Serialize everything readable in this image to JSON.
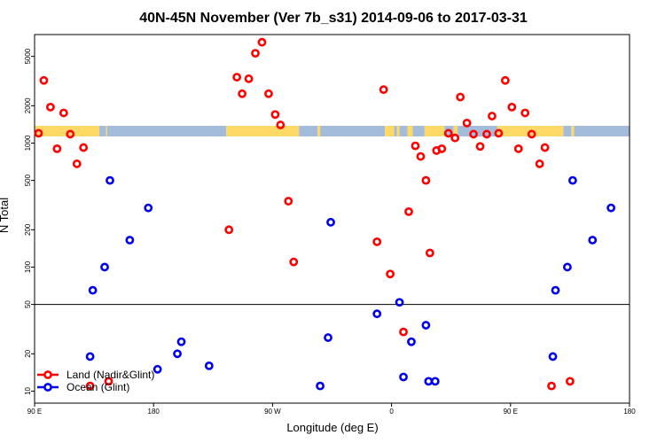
{
  "chart_data": {
    "type": "scatter",
    "title": "40N-45N November (Ver 7b_s31)   2014-09-06 to 2017-03-31",
    "xlabel": "Longitude (deg E)",
    "ylabel": "N Total",
    "x_ticks": [
      {
        "value": 90,
        "label": "90 E"
      },
      {
        "value": 180,
        "label": "180"
      },
      {
        "value": 270,
        "label": "90 W"
      },
      {
        "value": 360,
        "label": "0"
      },
      {
        "value": 450,
        "label": "90 E"
      },
      {
        "value": 540,
        "label": "180"
      }
    ],
    "xlim": [
      90,
      540
    ],
    "y_scale": "log",
    "y_ticks": [
      10,
      20,
      50,
      100,
      200,
      500,
      1000,
      2000,
      5000
    ],
    "ylim": [
      8,
      7500
    ],
    "reference_line_y": 50,
    "land_colors": {
      "land": "#ffd966",
      "ocean": "#a4bcdc"
    },
    "land_ocean_band": [
      {
        "from": 90,
        "to": 139,
        "type": "land"
      },
      {
        "from": 139,
        "to": 144,
        "type": "ocean"
      },
      {
        "from": 144,
        "to": 145,
        "type": "land"
      },
      {
        "from": 145,
        "to": 235,
        "type": "ocean"
      },
      {
        "from": 235,
        "to": 290,
        "type": "land"
      },
      {
        "from": 290,
        "to": 304,
        "type": "ocean"
      },
      {
        "from": 304,
        "to": 306,
        "type": "land"
      },
      {
        "from": 306,
        "to": 355,
        "type": "ocean"
      },
      {
        "from": 355,
        "to": 362,
        "type": "land"
      },
      {
        "from": 362,
        "to": 364,
        "type": "ocean"
      },
      {
        "from": 364,
        "to": 366,
        "type": "land"
      },
      {
        "from": 366,
        "to": 372,
        "type": "ocean"
      },
      {
        "from": 372,
        "to": 376,
        "type": "land"
      },
      {
        "from": 376,
        "to": 385,
        "type": "ocean"
      },
      {
        "from": 385,
        "to": 400,
        "type": "land"
      },
      {
        "from": 400,
        "to": 407,
        "type": "ocean"
      },
      {
        "from": 407,
        "to": 410,
        "type": "land"
      },
      {
        "from": 410,
        "to": 440,
        "type": "ocean"
      },
      {
        "from": 440,
        "to": 490,
        "type": "land"
      },
      {
        "from": 490,
        "to": 496,
        "type": "ocean"
      },
      {
        "from": 496,
        "to": 498,
        "type": "land"
      },
      {
        "from": 498,
        "to": 540,
        "type": "ocean"
      }
    ],
    "series": [
      {
        "name": "Land (Nadir&Glint)",
        "color": "#ff0000",
        "points": [
          {
            "x": 93,
            "y": 1200
          },
          {
            "x": 97,
            "y": 3200
          },
          {
            "x": 102,
            "y": 1950
          },
          {
            "x": 107,
            "y": 900
          },
          {
            "x": 112,
            "y": 1750
          },
          {
            "x": 117,
            "y": 1180
          },
          {
            "x": 122,
            "y": 680
          },
          {
            "x": 127,
            "y": 920
          },
          {
            "x": 132,
            "y": 11
          },
          {
            "x": 146,
            "y": 12
          },
          {
            "x": 237,
            "y": 200
          },
          {
            "x": 243,
            "y": 3400
          },
          {
            "x": 247,
            "y": 2500
          },
          {
            "x": 252,
            "y": 3300
          },
          {
            "x": 257,
            "y": 5300
          },
          {
            "x": 262,
            "y": 6500
          },
          {
            "x": 267,
            "y": 2500
          },
          {
            "x": 272,
            "y": 1700
          },
          {
            "x": 276,
            "y": 1400
          },
          {
            "x": 282,
            "y": 340
          },
          {
            "x": 286,
            "y": 110
          },
          {
            "x": 349,
            "y": 160
          },
          {
            "x": 354,
            "y": 2700
          },
          {
            "x": 359,
            "y": 88
          },
          {
            "x": 369,
            "y": 30
          },
          {
            "x": 373,
            "y": 280
          },
          {
            "x": 378,
            "y": 950
          },
          {
            "x": 382,
            "y": 780
          },
          {
            "x": 386,
            "y": 500
          },
          {
            "x": 389,
            "y": 130
          },
          {
            "x": 394,
            "y": 870
          },
          {
            "x": 398,
            "y": 900
          },
          {
            "x": 403,
            "y": 1200
          },
          {
            "x": 408,
            "y": 1100
          },
          {
            "x": 412,
            "y": 2350
          },
          {
            "x": 417,
            "y": 1450
          },
          {
            "x": 422,
            "y": 1180
          },
          {
            "x": 427,
            "y": 940
          },
          {
            "x": 432,
            "y": 1180
          },
          {
            "x": 436,
            "y": 1650
          },
          {
            "x": 441,
            "y": 1200
          },
          {
            "x": 446,
            "y": 3200
          },
          {
            "x": 451,
            "y": 1950
          },
          {
            "x": 456,
            "y": 900
          },
          {
            "x": 461,
            "y": 1750
          },
          {
            "x": 466,
            "y": 1180
          },
          {
            "x": 472,
            "y": 680
          },
          {
            "x": 476,
            "y": 920
          },
          {
            "x": 481,
            "y": 11
          },
          {
            "x": 495,
            "y": 12
          }
        ]
      },
      {
        "name": "Ocean (Glint)",
        "color": "#0000ee",
        "points": [
          {
            "x": 132,
            "y": 19
          },
          {
            "x": 134,
            "y": 65
          },
          {
            "x": 143,
            "y": 100
          },
          {
            "x": 147,
            "y": 500
          },
          {
            "x": 162,
            "y": 165
          },
          {
            "x": 176,
            "y": 300
          },
          {
            "x": 183,
            "y": 15
          },
          {
            "x": 198,
            "y": 20
          },
          {
            "x": 201,
            "y": 25
          },
          {
            "x": 222,
            "y": 16
          },
          {
            "x": 306,
            "y": 11
          },
          {
            "x": 312,
            "y": 27
          },
          {
            "x": 314,
            "y": 230
          },
          {
            "x": 349,
            "y": 42
          },
          {
            "x": 366,
            "y": 52
          },
          {
            "x": 369,
            "y": 13
          },
          {
            "x": 375,
            "y": 25
          },
          {
            "x": 386,
            "y": 34
          },
          {
            "x": 388,
            "y": 12
          },
          {
            "x": 393,
            "y": 12
          },
          {
            "x": 482,
            "y": 19
          },
          {
            "x": 484,
            "y": 65
          },
          {
            "x": 493,
            "y": 100
          },
          {
            "x": 497,
            "y": 500
          },
          {
            "x": 512,
            "y": 165
          },
          {
            "x": 526,
            "y": 300
          }
        ]
      }
    ],
    "legend": [
      {
        "label": "Land (Nadir&Glint)",
        "color": "#ff0000"
      },
      {
        "label": "Ocean (Glint)",
        "color": "#0000ee"
      }
    ],
    "legend_position": "bottom-left",
    "grid": false
  }
}
